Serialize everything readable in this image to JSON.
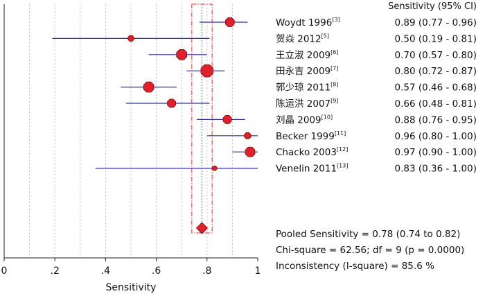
{
  "colors": {
    "ci_line": "#2e2e9a",
    "marker_fill": "#e0202a",
    "marker_edge": "#7a0a0a",
    "pooled_band": "#e03030",
    "grid": "#b0b0b0"
  },
  "chart_data": {
    "type": "forest",
    "xlabel": "Sensitivity",
    "xlim": [
      0,
      1
    ],
    "x_ticks": [
      "0",
      ".2",
      ".4",
      ".6",
      ".8",
      "1"
    ],
    "grid": true,
    "column_header": "Sensitivity (95% CI)",
    "studies": [
      {
        "name": "Woydt 1996",
        "ref": "[3]",
        "value": 0.89,
        "lower": 0.77,
        "upper": 0.96,
        "ci_text": "0.89 (0.77 - 0.96)"
      },
      {
        "name": "贺焱 2012",
        "ref": "[5]",
        "value": 0.5,
        "lower": 0.19,
        "upper": 0.81,
        "ci_text": "0.50 (0.19 - 0.81)"
      },
      {
        "name": "王立淑 2009",
        "ref": "[6]",
        "value": 0.7,
        "lower": 0.57,
        "upper": 0.8,
        "ci_text": "0.70 (0.57 - 0.80)"
      },
      {
        "name": "田永吉 2009",
        "ref": "[7]",
        "value": 0.8,
        "lower": 0.72,
        "upper": 0.87,
        "ci_text": "0.80 (0.72 - 0.87)"
      },
      {
        "name": "郭少琼 2011",
        "ref": "[8]",
        "value": 0.57,
        "lower": 0.46,
        "upper": 0.68,
        "ci_text": "0.57 (0.46 - 0.68)"
      },
      {
        "name": "陈运洪 2007",
        "ref": "[9]",
        "value": 0.66,
        "lower": 0.48,
        "upper": 0.81,
        "ci_text": "0.66 (0.48 - 0.81)"
      },
      {
        "name": "刘晶 2009",
        "ref": "[10]",
        "value": 0.88,
        "lower": 0.76,
        "upper": 0.95,
        "ci_text": "0.88 (0.76 - 0.95)"
      },
      {
        "name": "Becker 1999",
        "ref": "[11]",
        "value": 0.96,
        "lower": 0.8,
        "upper": 1.0,
        "ci_text": "0.96 (0.80 - 1.00)"
      },
      {
        "name": "Chacko 2003",
        "ref": "[12]",
        "value": 0.97,
        "lower": 0.9,
        "upper": 1.0,
        "ci_text": "0.97 (0.90 - 1.00)"
      },
      {
        "name": "Venelin 2011",
        "ref": "[13]",
        "value": 0.83,
        "lower": 0.36,
        "upper": 1.0,
        "ci_text": "0.83 (0.36 - 1.00)"
      }
    ],
    "pooled": {
      "value": 0.78,
      "lower": 0.74,
      "upper": 0.82
    },
    "summary": {
      "pooled_text": "Pooled Sensitivity = 0.78 (0.74 to 0.82)",
      "chi_text": "Chi-square = 62.56; df = 9 (p = 0.0000)",
      "inconsistency_text": "Inconsistency (I-square) = 85.6 %"
    }
  }
}
